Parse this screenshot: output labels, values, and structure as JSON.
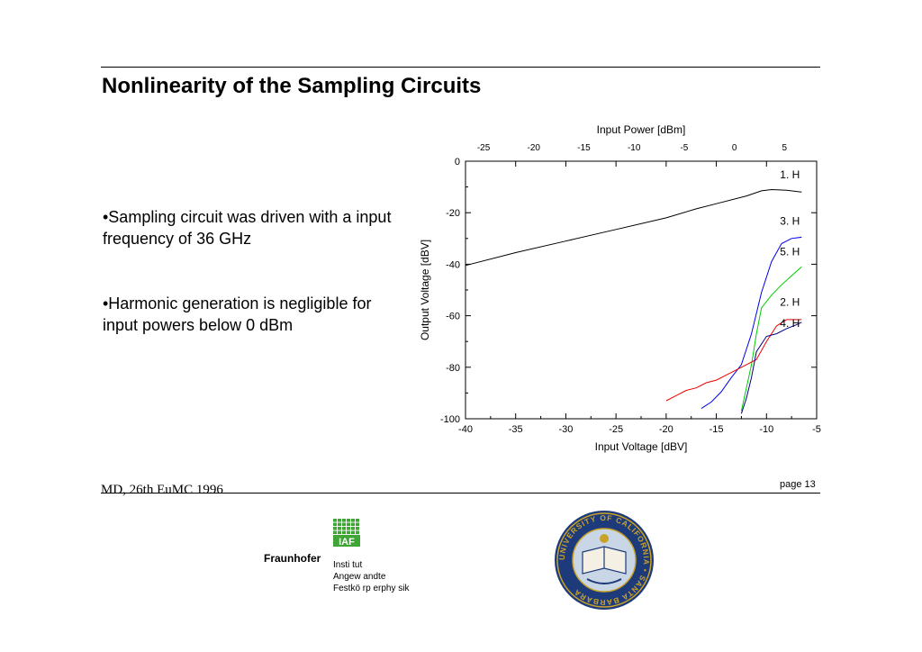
{
  "slide": {
    "title": "Nonlinearity of the Sampling Circuits",
    "bullets": [
      "•Sampling circuit was driven with a input frequency of 36 GHz",
      "•Harmonic generation is negligible for input powers below 0 dBm"
    ],
    "footer_left": "MD, 26th EuMC 1996",
    "footer_right": "page 13"
  },
  "logos": {
    "fraunhofer_name": "Fraunhofer",
    "iaf_label": "IAF",
    "institute_lines": [
      "Insti tut",
      "Angew andte",
      "Festkö rp erphy sik"
    ],
    "seal_text": "UNIVERSITY OF CALIFORNIA • SANTA BARBARA"
  },
  "colors": {
    "text": "#000000",
    "fraunhofer_green": "#3fa535",
    "seal_blue": "#1d3a7a",
    "seal_gold": "#c9a227"
  },
  "chart_data": {
    "type": "line",
    "title": "",
    "xlabel": "Input Voltage [dBV]",
    "ylabel": "Output Voltage [dBV]",
    "x2label": "Input Power [dBm]",
    "xlim": [
      -40,
      -5
    ],
    "ylim": [
      -100,
      0
    ],
    "xticks": [
      "-40",
      "-35",
      "-30",
      "-25",
      "-20",
      "-15",
      "-10",
      "-5"
    ],
    "yticks": [
      "0",
      "-20",
      "-40",
      "-60",
      "-80",
      "-100"
    ],
    "x2ticks": [
      "-25",
      "-20",
      "-15",
      "-10",
      "-5",
      "0",
      "5"
    ],
    "grid": false,
    "legend": "inline labels",
    "series": [
      {
        "name": "1. H",
        "color": "#000000",
        "x": [
          -40,
          -35,
          -30,
          -25,
          -20,
          -17,
          -15,
          -12,
          -10.5,
          -9.5,
          -8,
          -6.5
        ],
        "y": [
          -40.5,
          -35.5,
          -31,
          -26.5,
          -22,
          -18.5,
          -16.5,
          -13.5,
          -11.5,
          -11,
          -11.3,
          -12
        ]
      },
      {
        "name": "3. H",
        "color": "#0000ee",
        "x": [
          -16.5,
          -15.5,
          -14.5,
          -13.5,
          -12.5,
          -11.5,
          -10.5,
          -9.5,
          -8.5,
          -7.5,
          -6.5
        ],
        "y": [
          -96,
          -93.5,
          -89.5,
          -84,
          -79,
          -67,
          -51,
          -39,
          -32,
          -30,
          -29.5
        ]
      },
      {
        "name": "5. H",
        "color": "#00cc00",
        "x": [
          -12.5,
          -12,
          -11.5,
          -11,
          -10.5,
          -9.5,
          -8.5,
          -7.5,
          -6.5
        ],
        "y": [
          -97,
          -88,
          -79,
          -67,
          -57,
          -52,
          -48,
          -44.5,
          -41
        ]
      },
      {
        "name": "2. H",
        "color": "#ee0000",
        "x": [
          -20,
          -19,
          -18,
          -17,
          -16,
          -15,
          -14,
          -13,
          -12,
          -11,
          -10,
          -9,
          -8,
          -7,
          -6.5
        ],
        "y": [
          -93,
          -91,
          -89,
          -88,
          -86,
          -85,
          -83,
          -81,
          -79,
          -77,
          -70,
          -64,
          -61.5,
          -61.5,
          -61.5
        ]
      },
      {
        "name": "4. H",
        "color": "#000080",
        "x": [
          -12.5,
          -12,
          -11.5,
          -11,
          -10,
          -9,
          -8,
          -7,
          -6.5
        ],
        "y": [
          -98,
          -92,
          -84,
          -74,
          -68,
          -67,
          -65,
          -63.5,
          -62.5
        ]
      }
    ]
  }
}
